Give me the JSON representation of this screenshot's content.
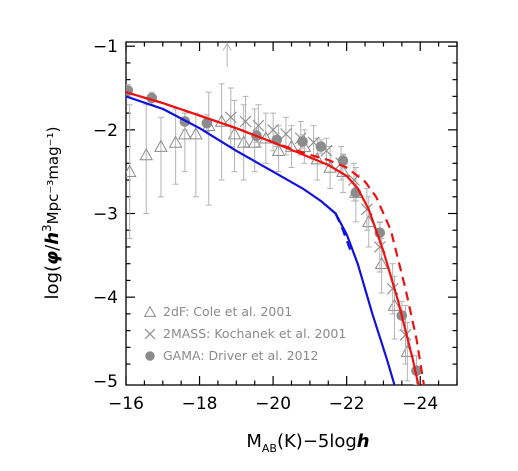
{
  "chart_data": {
    "type": "line",
    "xlabel": {
      "main": "M",
      "sub": "AB",
      "rest": "(K)−5log",
      "italic": "h"
    },
    "ylabel": {
      "prefix": "log(",
      "phi": "φ",
      "slash": "/",
      "h": "h",
      "sup3": "3",
      "units": "Mpc",
      "tail": "⁻³mag⁻¹)"
    },
    "xlim": [
      -16,
      -25
    ],
    "ylim": [
      -5.05,
      -0.95
    ],
    "xticks": [
      -16,
      -18,
      -20,
      -22,
      -24
    ],
    "xtick_labels": [
      "−16",
      "−18",
      "−20",
      "−22",
      "−24"
    ],
    "yticks": [
      -1,
      -2,
      -3,
      -4,
      -5
    ],
    "ytick_labels": [
      "−1",
      "−2",
      "−3",
      "−4",
      "−5"
    ],
    "grid": false,
    "legend_position": "bottom-left",
    "legend": [
      {
        "marker": "triangle",
        "label": "2dF: Cole et al. 2001"
      },
      {
        "marker": "cross",
        "label": "2MASS: Kochanek et al. 2001"
      },
      {
        "marker": "circle",
        "label": "GAMA: Driver et al. 2012"
      }
    ],
    "colors": {
      "data": "#8c8c8c",
      "errorbar": "#b4b4b4",
      "red": "#ee1111",
      "blue": "#1111dd"
    },
    "series": [
      {
        "marker": "triangle",
        "points": [
          {
            "x": -16.1,
            "y": -2.5,
            "lo": -3.3,
            "hi": -1.7
          },
          {
            "x": -16.55,
            "y": -2.3,
            "lo": -3.0,
            "hi": -1.7
          },
          {
            "x": -16.95,
            "y": -2.2,
            "lo": -2.8,
            "hi": -1.85
          },
          {
            "x": -17.35,
            "y": -2.15,
            "lo": -2.65,
            "hi": -1.75
          },
          {
            "x": -17.6,
            "y": -2.05,
            "lo": -2.5,
            "hi": -1.8
          },
          {
            "x": -17.9,
            "y": -2.05,
            "lo": -2.8,
            "hi": -1.8
          },
          {
            "x": -18.25,
            "y": -1.95,
            "lo": -2.9,
            "hi": -1.55
          },
          {
            "x": -18.6,
            "y": -1.9,
            "lo": -2.6,
            "hi": -1.45
          },
          {
            "x": -18.95,
            "y": -2.05,
            "lo": -2.5,
            "hi": -1.65
          },
          {
            "x": -19.2,
            "y": -2.15,
            "lo": -2.6,
            "hi": -1.7
          },
          {
            "x": -19.5,
            "y": -2.15,
            "lo": -2.5,
            "hi": -1.75
          },
          {
            "x": -19.8,
            "y": -2.1,
            "lo": -2.4,
            "hi": -1.8
          },
          {
            "x": -20.15,
            "y": -2.25,
            "lo": -2.5,
            "hi": -1.95
          },
          {
            "x": -20.5,
            "y": -2.2,
            "lo": -2.45,
            "hi": -1.95
          },
          {
            "x": -20.85,
            "y": -2.2,
            "lo": -2.4,
            "hi": -2.0
          },
          {
            "x": -21.2,
            "y": -2.35,
            "lo": -2.6,
            "hi": -2.1
          },
          {
            "x": -21.55,
            "y": -2.45,
            "lo": -2.7,
            "hi": -2.2
          },
          {
            "x": -21.9,
            "y": -2.5,
            "lo": -2.75,
            "hi": -2.3
          },
          {
            "x": -22.25,
            "y": -2.75,
            "lo": -3.1,
            "hi": -2.45
          },
          {
            "x": -22.6,
            "y": -3.1,
            "lo": -3.4,
            "hi": -2.8
          },
          {
            "x": -22.95,
            "y": -3.6,
            "lo": -3.95,
            "hi": -3.3
          },
          {
            "x": -23.3,
            "y": -4.1,
            "lo": -4.5,
            "hi": -3.75
          },
          {
            "x": -23.65,
            "y": -4.65,
            "lo": -5.0,
            "hi": -4.3
          }
        ]
      },
      {
        "marker": "cross",
        "points": [
          {
            "x": -18.85,
            "y": -1.85,
            "lo": -2.2,
            "hi": -1.5
          },
          {
            "x": -19.25,
            "y": -1.9,
            "lo": -2.2,
            "hi": -1.6
          },
          {
            "x": -19.6,
            "y": -1.95,
            "lo": -2.2,
            "hi": -1.7
          },
          {
            "x": -20.0,
            "y": -2.0,
            "lo": -2.25,
            "hi": -1.8
          },
          {
            "x": -20.35,
            "y": -2.05,
            "lo": -2.3,
            "hi": -1.85
          },
          {
            "x": -20.75,
            "y": -2.1,
            "lo": -2.3,
            "hi": -1.9
          },
          {
            "x": -21.1,
            "y": -2.15,
            "lo": -2.35,
            "hi": -1.95
          },
          {
            "x": -21.45,
            "y": -2.25,
            "lo": -2.4,
            "hi": -2.1
          },
          {
            "x": -21.85,
            "y": -2.4,
            "lo": -2.6,
            "hi": -2.2
          },
          {
            "x": -22.2,
            "y": -2.6,
            "lo": -2.85,
            "hi": -2.4
          },
          {
            "x": -22.55,
            "y": -2.95,
            "lo": -3.2,
            "hi": -2.7
          },
          {
            "x": -22.9,
            "y": -3.4,
            "lo": -3.7,
            "hi": -3.1
          },
          {
            "x": -23.25,
            "y": -3.9,
            "lo": -4.2,
            "hi": -3.6
          },
          {
            "x": -23.6,
            "y": -4.45,
            "lo": -4.8,
            "hi": -4.1
          }
        ]
      },
      {
        "marker": "circle",
        "points": [
          {
            "x": -16.05,
            "y": -1.53,
            "lo": -1.6,
            "hi": -1.46
          },
          {
            "x": -16.7,
            "y": -1.62,
            "lo": -1.7,
            "hi": -1.55
          },
          {
            "x": -17.6,
            "y": -1.9,
            "lo": -2.0,
            "hi": -1.8
          },
          {
            "x": -18.2,
            "y": -1.92,
            "lo": -2.02,
            "hi": -1.82
          },
          {
            "x": -19.55,
            "y": -2.07,
            "lo": -2.15,
            "hi": -1.99
          },
          {
            "x": -20.1,
            "y": -2.12,
            "lo": -2.2,
            "hi": -2.04
          },
          {
            "x": -20.8,
            "y": -2.14,
            "lo": -2.22,
            "hi": -2.06
          },
          {
            "x": -21.3,
            "y": -2.2,
            "lo": -2.28,
            "hi": -2.12
          },
          {
            "x": -21.9,
            "y": -2.37,
            "lo": -2.45,
            "hi": -2.29
          },
          {
            "x": -22.25,
            "y": -2.75,
            "lo": -2.85,
            "hi": -2.65
          },
          {
            "x": -22.9,
            "y": -3.23,
            "lo": -3.35,
            "hi": -3.11
          },
          {
            "x": -23.5,
            "y": -4.22,
            "lo": -4.4,
            "hi": -4.05
          },
          {
            "x": -23.9,
            "y": -4.88,
            "lo": -5.05,
            "hi": -4.7
          }
        ]
      },
      {
        "color": "red",
        "style": "solid",
        "points": [
          [
            -16,
            -1.55
          ],
          [
            -17,
            -1.68
          ],
          [
            -18,
            -1.83
          ],
          [
            -19,
            -1.98
          ],
          [
            -20,
            -2.15
          ],
          [
            -21,
            -2.33
          ],
          [
            -21.5,
            -2.42
          ],
          [
            -22,
            -2.55
          ],
          [
            -22.3,
            -2.7
          ],
          [
            -22.6,
            -2.95
          ],
          [
            -23,
            -3.45
          ],
          [
            -23.4,
            -4.05
          ],
          [
            -23.8,
            -4.75
          ],
          [
            -23.95,
            -5.05
          ]
        ]
      },
      {
        "color": "red",
        "style": "dashed",
        "points": [
          [
            -16,
            -1.55
          ],
          [
            -17,
            -1.68
          ],
          [
            -18,
            -1.83
          ],
          [
            -19,
            -1.98
          ],
          [
            -20,
            -2.15
          ],
          [
            -21,
            -2.3
          ],
          [
            -21.5,
            -2.36
          ],
          [
            -22,
            -2.45
          ],
          [
            -22.5,
            -2.62
          ],
          [
            -22.8,
            -2.8
          ],
          [
            -23.2,
            -3.2
          ],
          [
            -23.6,
            -3.9
          ],
          [
            -23.9,
            -4.5
          ],
          [
            -24.1,
            -5.05
          ]
        ]
      },
      {
        "color": "blue",
        "style": "solid",
        "points": [
          [
            -16,
            -1.6
          ],
          [
            -17,
            -1.75
          ],
          [
            -18,
            -1.98
          ],
          [
            -19,
            -2.25
          ],
          [
            -20,
            -2.5
          ],
          [
            -20.8,
            -2.7
          ],
          [
            -21.3,
            -2.85
          ],
          [
            -21.7,
            -3.0
          ],
          [
            -22,
            -3.25
          ],
          [
            -22.3,
            -3.6
          ],
          [
            -22.7,
            -4.2
          ],
          [
            -23.1,
            -4.75
          ],
          [
            -23.3,
            -5.05
          ]
        ]
      },
      {
        "color": "blue",
        "style": "dashed",
        "points": [
          [
            -21.7,
            -3.0
          ],
          [
            -21.9,
            -3.2
          ],
          [
            -22.15,
            -3.5
          ]
        ]
      }
    ]
  }
}
